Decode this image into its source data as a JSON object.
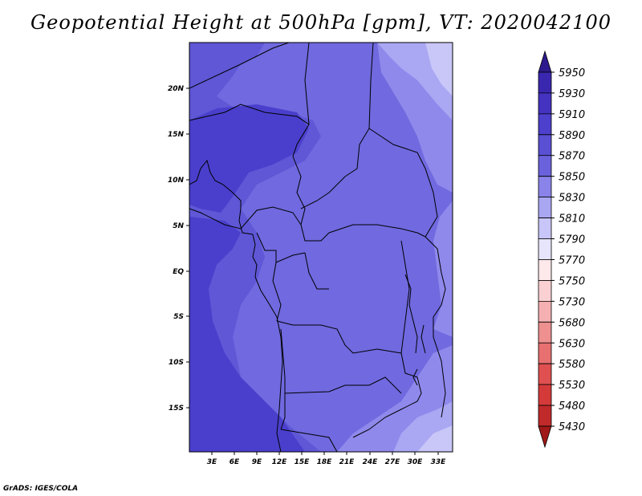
{
  "title": "Geopotential Height at 500hPa [gpm], VT: 2020042100",
  "credit": "GrADS: IGES/COLA",
  "map": {
    "lat_labels": [
      "20N",
      "15N",
      "10N",
      "5N",
      "EQ",
      "5S",
      "10S",
      "15S"
    ],
    "lon_labels": [
      "3E",
      "6E",
      "9E",
      "12E",
      "15E",
      "18E",
      "21E",
      "24E",
      "27E",
      "30E",
      "33E"
    ]
  },
  "colorbar": {
    "levels": [
      "5950",
      "5930",
      "5910",
      "5890",
      "5870",
      "5850",
      "5830",
      "5810",
      "5790",
      "5770",
      "5750",
      "5730",
      "5680",
      "5630",
      "5580",
      "5530",
      "5480",
      "5430"
    ],
    "colors": [
      "#2d1a8c",
      "#3a27b0",
      "#4433c0",
      "#4d40cc",
      "#5a50d4",
      "#6a62dc",
      "#8a84ea",
      "#a9a6f2",
      "#c8c6f8",
      "#e6e5fc",
      "#fde8ea",
      "#fbd0d2",
      "#f5b0b2",
      "#ee9090",
      "#e87070",
      "#e05050",
      "#d43a3a",
      "#c02a2a",
      "#a01818"
    ]
  },
  "fields": {
    "colors": {
      "c5890": "#4a3fcc",
      "c5870": "#5f57d6",
      "c5850": "#7069df",
      "c5830": "#8f89ec",
      "c5810": "#aaa7f3",
      "c5790": "#c9c7f8"
    }
  }
}
